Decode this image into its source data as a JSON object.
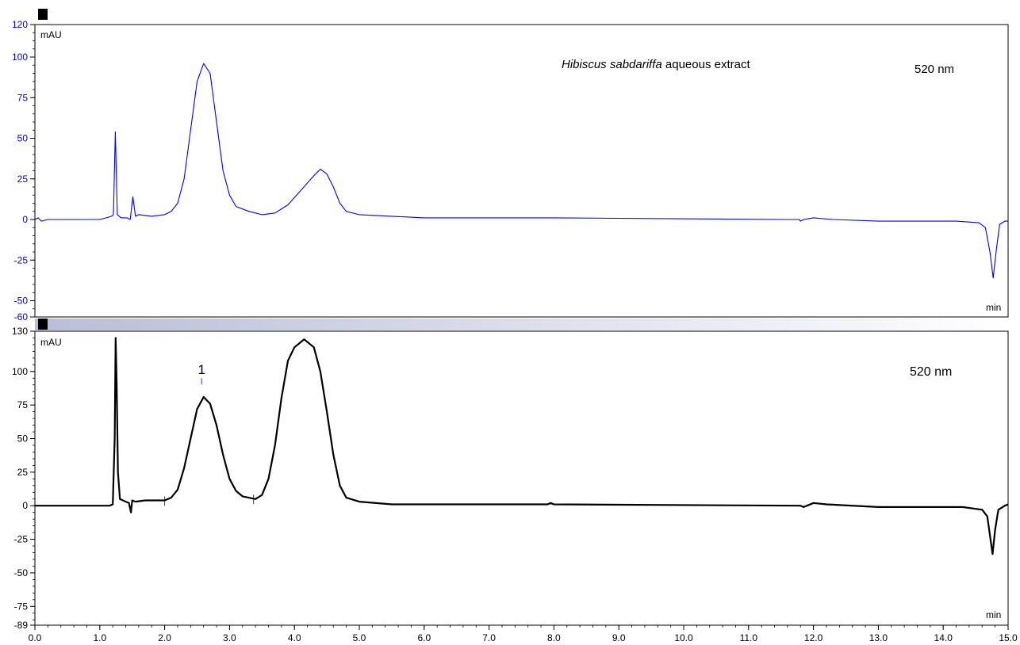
{
  "header_fragment": "",
  "chart_data": [
    {
      "type": "line",
      "panel": "top",
      "color": "#0000ff",
      "yunit": "mAU",
      "xunit": "min",
      "wavelength_label": "520 nm",
      "title_italic": "Hibiscus sabdariffa",
      "title_rest": " aqueous extract",
      "xlim": [
        0,
        15
      ],
      "ylim": [
        -60,
        120
      ],
      "yticks": [
        {
          "v": 120,
          "label": "120"
        },
        {
          "v": 100,
          "label": "100"
        },
        {
          "v": 75,
          "label": "75"
        },
        {
          "v": 50,
          "label": "50"
        },
        {
          "v": 25,
          "label": "25"
        },
        {
          "v": 0,
          "label": "0"
        },
        {
          "v": -25,
          "label": "-25"
        },
        {
          "v": -50,
          "label": "-50"
        },
        {
          "v": -60,
          "label": "-60"
        }
      ],
      "series": [
        {
          "points": [
            [
              0.0,
              0
            ],
            [
              0.05,
              1
            ],
            [
              0.1,
              -1
            ],
            [
              0.2,
              0
            ],
            [
              1.0,
              0
            ],
            [
              1.1,
              1
            ],
            [
              1.18,
              2
            ],
            [
              1.21,
              3
            ],
            [
              1.24,
              54
            ],
            [
              1.27,
              3
            ],
            [
              1.33,
              1
            ],
            [
              1.42,
              1
            ],
            [
              1.47,
              0
            ],
            [
              1.51,
              14
            ],
            [
              1.55,
              2
            ],
            [
              1.6,
              3
            ],
            [
              1.8,
              2
            ],
            [
              2.0,
              3
            ],
            [
              2.1,
              5
            ],
            [
              2.2,
              10
            ],
            [
              2.3,
              25
            ],
            [
              2.4,
              55
            ],
            [
              2.5,
              85
            ],
            [
              2.6,
              96
            ],
            [
              2.7,
              90
            ],
            [
              2.8,
              60
            ],
            [
              2.9,
              30
            ],
            [
              3.0,
              15
            ],
            [
              3.1,
              8
            ],
            [
              3.3,
              5
            ],
            [
              3.5,
              3
            ],
            [
              3.7,
              4
            ],
            [
              3.9,
              9
            ],
            [
              4.1,
              18
            ],
            [
              4.3,
              27
            ],
            [
              4.4,
              31
            ],
            [
              4.5,
              28
            ],
            [
              4.6,
              20
            ],
            [
              4.7,
              10
            ],
            [
              4.8,
              5
            ],
            [
              5.0,
              3
            ],
            [
              5.5,
              2
            ],
            [
              6.0,
              1
            ],
            [
              8.0,
              1
            ],
            [
              11.5,
              0
            ],
            [
              11.78,
              0
            ],
            [
              11.8,
              -1
            ],
            [
              11.85,
              0
            ],
            [
              12.0,
              1
            ],
            [
              12.3,
              0
            ],
            [
              13.0,
              -1
            ],
            [
              14.2,
              -1
            ],
            [
              14.55,
              -2
            ],
            [
              14.65,
              -5
            ],
            [
              14.72,
              -20
            ],
            [
              14.77,
              -36
            ],
            [
              14.82,
              -18
            ],
            [
              14.87,
              -3
            ],
            [
              14.95,
              -1
            ],
            [
              15.0,
              -1
            ]
          ]
        }
      ]
    },
    {
      "type": "line",
      "panel": "bottom",
      "color": "#000000",
      "yunit": "mAU",
      "xunit": "min",
      "wavelength_label": "520 nm",
      "peak_label": "1",
      "peak_label_x": 2.57,
      "peak_label_y": 98,
      "integration_marks": [
        2.0,
        2.57,
        3.37
      ],
      "xlim": [
        0,
        15
      ],
      "ylim": [
        -89,
        130
      ],
      "yticks": [
        {
          "v": 130,
          "label": "130"
        },
        {
          "v": 100,
          "label": "100"
        },
        {
          "v": 75,
          "label": "75"
        },
        {
          "v": 50,
          "label": "50"
        },
        {
          "v": 25,
          "label": "25"
        },
        {
          "v": 0,
          "label": "0"
        },
        {
          "v": -25,
          "label": "-25"
        },
        {
          "v": -50,
          "label": "-50"
        },
        {
          "v": -75,
          "label": "-75"
        },
        {
          "v": -89,
          "label": "-89"
        }
      ],
      "xticks": [
        {
          "v": 0,
          "label": "0.0"
        },
        {
          "v": 1,
          "label": "1.0"
        },
        {
          "v": 2,
          "label": "2.0"
        },
        {
          "v": 3,
          "label": "3.0"
        },
        {
          "v": 4,
          "label": "4.0"
        },
        {
          "v": 5,
          "label": "5.0"
        },
        {
          "v": 6,
          "label": "6.0"
        },
        {
          "v": 7,
          "label": "7.0"
        },
        {
          "v": 8,
          "label": "8.0"
        },
        {
          "v": 9,
          "label": "9.0"
        },
        {
          "v": 10,
          "label": "10.0"
        },
        {
          "v": 11,
          "label": "11.0"
        },
        {
          "v": 12,
          "label": "12.0"
        },
        {
          "v": 13,
          "label": "13.0"
        },
        {
          "v": 14,
          "label": "14.0"
        },
        {
          "v": 15,
          "label": "15.0"
        }
      ],
      "series": [
        {
          "points": [
            [
              0.0,
              0
            ],
            [
              0.5,
              0
            ],
            [
              1.0,
              0
            ],
            [
              1.15,
              0
            ],
            [
              1.2,
              1
            ],
            [
              1.23,
              50
            ],
            [
              1.245,
              125
            ],
            [
              1.26,
              90
            ],
            [
              1.28,
              25
            ],
            [
              1.31,
              5
            ],
            [
              1.4,
              3
            ],
            [
              1.45,
              2
            ],
            [
              1.48,
              -5
            ],
            [
              1.5,
              4
            ],
            [
              1.55,
              3
            ],
            [
              1.7,
              4
            ],
            [
              2.0,
              4
            ],
            [
              2.1,
              6
            ],
            [
              2.2,
              12
            ],
            [
              2.3,
              28
            ],
            [
              2.4,
              50
            ],
            [
              2.5,
              72
            ],
            [
              2.6,
              81
            ],
            [
              2.7,
              76
            ],
            [
              2.8,
              60
            ],
            [
              2.9,
              38
            ],
            [
              3.0,
              20
            ],
            [
              3.1,
              11
            ],
            [
              3.2,
              7
            ],
            [
              3.4,
              5
            ],
            [
              3.5,
              8
            ],
            [
              3.6,
              20
            ],
            [
              3.7,
              45
            ],
            [
              3.8,
              80
            ],
            [
              3.9,
              108
            ],
            [
              4.0,
              118
            ],
            [
              4.15,
              124
            ],
            [
              4.3,
              118
            ],
            [
              4.4,
              100
            ],
            [
              4.5,
              70
            ],
            [
              4.6,
              38
            ],
            [
              4.7,
              15
            ],
            [
              4.8,
              6
            ],
            [
              5.0,
              3
            ],
            [
              5.5,
              1
            ],
            [
              6.0,
              1
            ],
            [
              7.9,
              1
            ],
            [
              7.95,
              2
            ],
            [
              8.0,
              1
            ],
            [
              11.8,
              0
            ],
            [
              11.85,
              -1
            ],
            [
              11.9,
              0
            ],
            [
              12.0,
              2
            ],
            [
              12.2,
              1
            ],
            [
              13.0,
              -1
            ],
            [
              14.3,
              -1
            ],
            [
              14.6,
              -3
            ],
            [
              14.68,
              -8
            ],
            [
              14.72,
              -22
            ],
            [
              14.76,
              -36
            ],
            [
              14.8,
              -18
            ],
            [
              14.85,
              -3
            ],
            [
              14.95,
              0
            ],
            [
              15.0,
              1
            ]
          ]
        }
      ]
    }
  ]
}
